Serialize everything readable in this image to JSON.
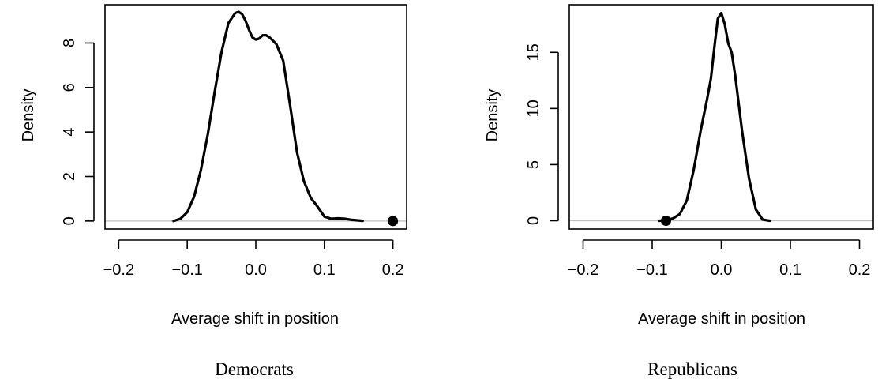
{
  "chart_data": [
    {
      "type": "line",
      "caption": "Democrats",
      "xlabel": "Average shift in position",
      "ylabel": "Density",
      "xlim": [
        -0.22,
        0.22
      ],
      "ylim": [
        -0.36,
        9.72
      ],
      "xticks": [
        -0.2,
        -0.1,
        0.0,
        0.1,
        0.2
      ],
      "xtick_labels": [
        "−0.2",
        "−0.1",
        "0.0",
        "0.1",
        "0.2"
      ],
      "yticks": [
        0,
        2,
        4,
        6,
        8
      ],
      "ytick_labels": [
        "0",
        "2",
        "4",
        "6",
        "8"
      ],
      "reference_line_y": 0,
      "reference_line_color": "#bebebe",
      "line_color": "#000000",
      "series": [
        {
          "x": [
            -0.12,
            -0.11,
            -0.1,
            -0.09,
            -0.08,
            -0.07,
            -0.06,
            -0.05,
            -0.04,
            -0.03,
            -0.025,
            -0.02,
            -0.015,
            -0.01,
            -0.005,
            0.0,
            0.005,
            0.01,
            0.015,
            0.02,
            0.03,
            0.04,
            0.05,
            0.06,
            0.07,
            0.08,
            0.09,
            0.1,
            0.11,
            0.12,
            0.13,
            0.14,
            0.156
          ],
          "y": [
            0.0,
            0.1,
            0.4,
            1.1,
            2.3,
            3.9,
            5.8,
            7.6,
            8.9,
            9.35,
            9.4,
            9.3,
            9.0,
            8.6,
            8.25,
            8.15,
            8.2,
            8.35,
            8.35,
            8.25,
            7.95,
            7.2,
            5.2,
            3.1,
            1.8,
            1.05,
            0.65,
            0.2,
            0.1,
            0.12,
            0.1,
            0.05,
            0.01
          ]
        }
      ],
      "points": [
        {
          "x": 0.2,
          "y": 0.0
        }
      ]
    },
    {
      "type": "line",
      "caption": "Republicans",
      "xlabel": "Average shift in position",
      "ylabel": "Density",
      "xlim": [
        -0.22,
        0.22
      ],
      "ylim": [
        -0.74,
        19.24
      ],
      "xticks": [
        -0.2,
        -0.1,
        0.0,
        0.1,
        0.2
      ],
      "xtick_labels": [
        "−0.2",
        "−0.1",
        "0.0",
        "0.1",
        "0.2"
      ],
      "yticks": [
        0,
        5,
        10,
        15
      ],
      "ytick_labels": [
        "0",
        "5",
        "10",
        "15"
      ],
      "reference_line_y": 0,
      "reference_line_color": "#bebebe",
      "line_color": "#000000",
      "series": [
        {
          "x": [
            -0.09,
            -0.08,
            -0.07,
            -0.06,
            -0.05,
            -0.04,
            -0.03,
            -0.02,
            -0.015,
            -0.01,
            -0.005,
            0.0,
            0.005,
            0.01,
            0.015,
            0.02,
            0.03,
            0.04,
            0.05,
            0.06,
            0.07
          ],
          "y": [
            0.0,
            0.05,
            0.2,
            0.6,
            1.8,
            4.5,
            8.0,
            11.0,
            12.7,
            15.5,
            18.0,
            18.5,
            17.5,
            15.8,
            15.0,
            13.0,
            8.0,
            3.8,
            1.0,
            0.1,
            0.0
          ]
        }
      ],
      "points": [
        {
          "x": -0.08,
          "y": 0.0
        }
      ]
    }
  ]
}
